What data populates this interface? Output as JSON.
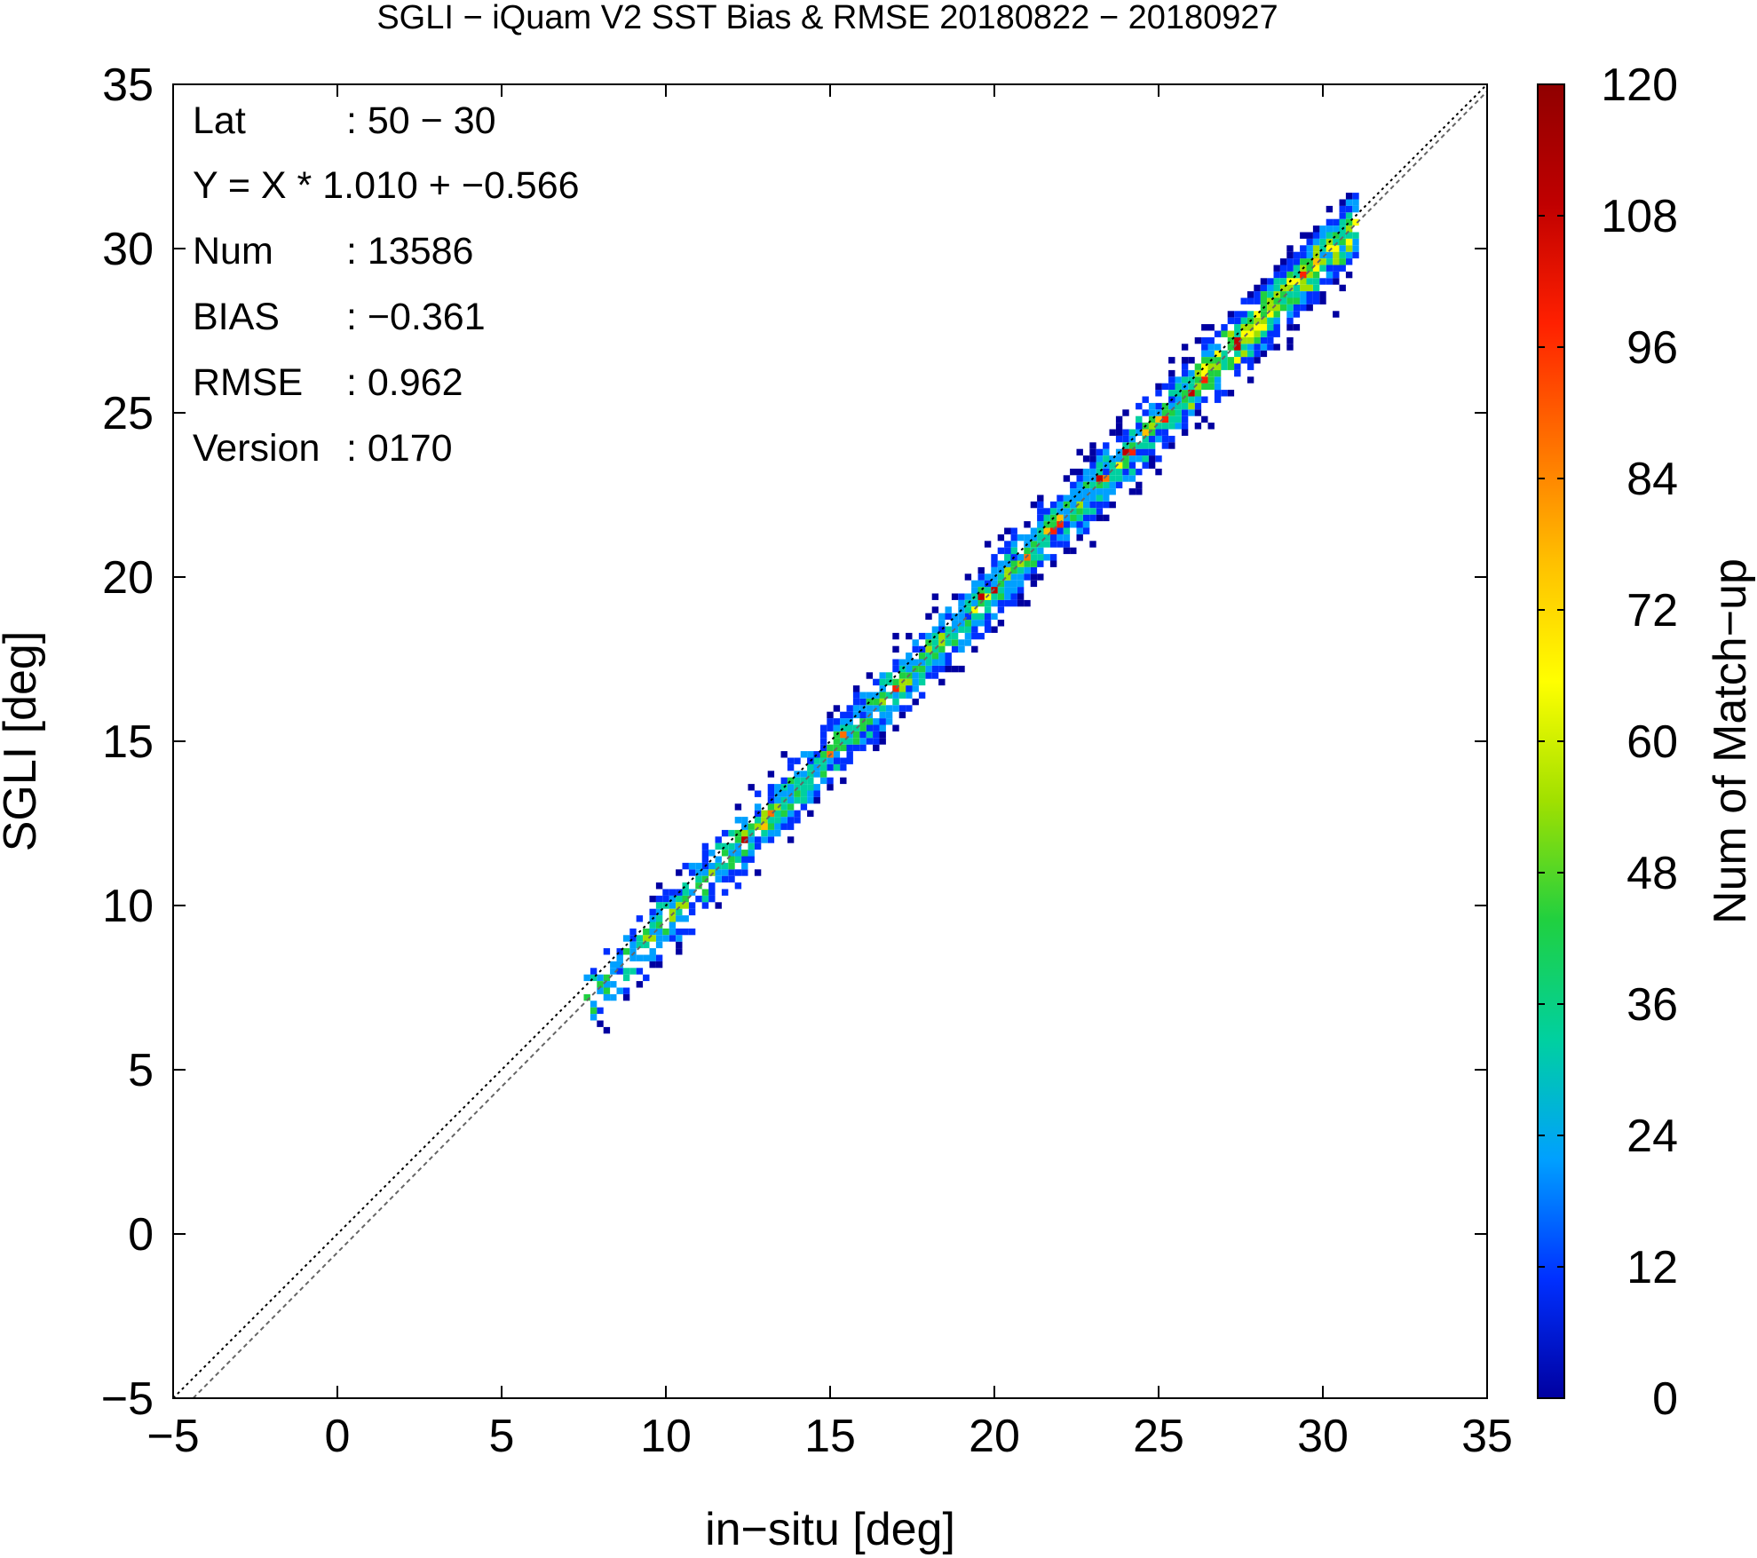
{
  "chart_data": {
    "type": "heatmap",
    "title": "SGLI − iQuam V2 SST Bias & RMSE 20180822 − 20180927",
    "xlabel": "in−situ [deg]",
    "ylabel": "SGLI [deg]",
    "xlim": [
      -5,
      35
    ],
    "ylim": [
      -5,
      35
    ],
    "x_ticks": [
      "−5",
      "0",
      "5",
      "10",
      "15",
      "20",
      "25",
      "30",
      "35"
    ],
    "y_ticks": [
      "−5",
      "0",
      "5",
      "10",
      "15",
      "20",
      "25",
      "30",
      "35"
    ],
    "grid": false,
    "colorbar": {
      "label": "Num of Match−up",
      "range": [
        0,
        120
      ],
      "ticks": [
        "0",
        "12",
        "24",
        "36",
        "48",
        "60",
        "72",
        "84",
        "96",
        "108",
        "120"
      ],
      "colors": [
        "#0000a0",
        "#0030ff",
        "#00a0ff",
        "#00d0a0",
        "#20d040",
        "#a0e000",
        "#ffff00",
        "#ffc000",
        "#ff7000",
        "#ff2000",
        "#c00000",
        "#900000"
      ]
    },
    "reference_lines": [
      {
        "name": "1:1",
        "slope": 1.0,
        "intercept": 0.0,
        "style": "dotted-black"
      },
      {
        "name": "fit",
        "slope": 1.01,
        "intercept": -0.566,
        "style": "dashed-gray"
      }
    ],
    "stats": [
      {
        "label": "Lat",
        "value": ": 50 − 30"
      },
      {
        "label": "Y = X * 1.010 + −0.566",
        "value": ""
      },
      {
        "label": "Num",
        "value": ": 13586"
      },
      {
        "label": "BIAS",
        "value": ": −0.361"
      },
      {
        "label": "RMSE",
        "value": ": 0.962"
      },
      {
        "label": "Version",
        "value": ": 0170"
      }
    ],
    "cloud": {
      "x_range": [
        7.5,
        31
      ],
      "slope": 1.01,
      "intercept": -0.566,
      "bin_size": 0.2,
      "peak_count": 115
    }
  }
}
